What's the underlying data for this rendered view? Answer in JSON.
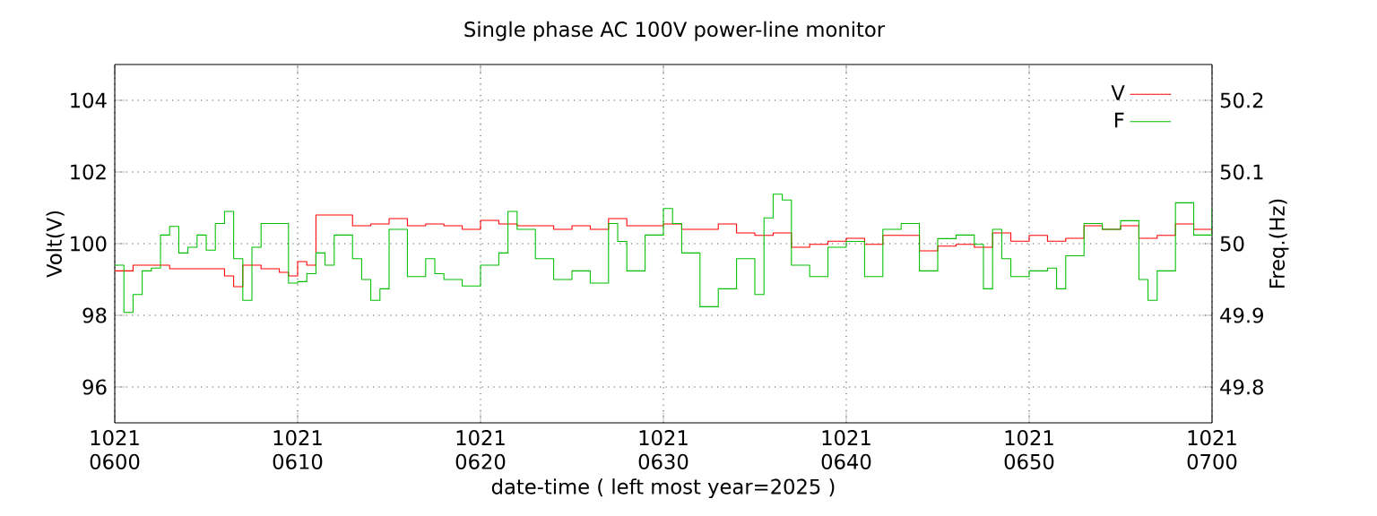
{
  "chart_data": {
    "type": "step",
    "title": "Single phase AC 100V power-line monitor",
    "xlabel": "date-time ( left most year=2025 )",
    "ylabel": "Volt(V)",
    "y2label": "Freq.(Hz)",
    "xlim": [
      "2025-10-21T06:00",
      "2025-10-21T07:00"
    ],
    "xticks": [
      {
        "value": "2025-10-21T06:00",
        "label": "1021 0600"
      },
      {
        "value": "2025-10-21T06:10",
        "label": "1021 0610"
      },
      {
        "value": "2025-10-21T06:20",
        "label": "1021 0620"
      },
      {
        "value": "2025-10-21T06:30",
        "label": "1021 0630"
      },
      {
        "value": "2025-10-21T06:40",
        "label": "1021 0640"
      },
      {
        "value": "2025-10-21T06:50",
        "label": "1021 0650"
      },
      {
        "value": "2025-10-21T07:00",
        "label": "1021 0700"
      }
    ],
    "ylim": [
      95,
      105
    ],
    "yticks": [
      96,
      98,
      100,
      102,
      104
    ],
    "y2lim": [
      49.75,
      50.25
    ],
    "y2ticks": [
      49.8,
      49.9,
      {
        "value": 50,
        "label": "50"
      },
      50.1,
      50.2
    ],
    "grid": true,
    "legend": "top right",
    "series": [
      {
        "name": "V",
        "color": "#ff0000",
        "x": [
          "2025-10-21T06:00",
          "2025-10-21T06:01",
          "2025-10-21T06:02",
          "2025-10-21T06:03",
          "2025-10-21T06:04",
          "2025-10-21T06:05",
          "2025-10-21T06:06",
          "2025-10-21T06:06:30",
          "2025-10-21T06:07",
          "2025-10-21T06:08",
          "2025-10-21T06:09",
          "2025-10-21T06:09:30",
          "2025-10-21T06:10",
          "2025-10-21T06:10:30",
          "2025-10-21T06:11",
          "2025-10-21T06:12",
          "2025-10-21T06:13",
          "2025-10-21T06:14",
          "2025-10-21T06:15",
          "2025-10-21T06:16",
          "2025-10-21T06:17",
          "2025-10-21T06:18",
          "2025-10-21T06:19",
          "2025-10-21T06:20",
          "2025-10-21T06:21",
          "2025-10-21T06:22",
          "2025-10-21T06:23",
          "2025-10-21T06:24",
          "2025-10-21T06:25",
          "2025-10-21T06:26",
          "2025-10-21T06:27",
          "2025-10-21T06:28",
          "2025-10-21T06:29",
          "2025-10-21T06:30",
          "2025-10-21T06:31",
          "2025-10-21T06:32",
          "2025-10-21T06:33",
          "2025-10-21T06:34",
          "2025-10-21T06:35",
          "2025-10-21T06:36",
          "2025-10-21T06:37",
          "2025-10-21T06:38",
          "2025-10-21T06:39",
          "2025-10-21T06:40",
          "2025-10-21T06:41",
          "2025-10-21T06:42",
          "2025-10-21T06:43",
          "2025-10-21T06:44",
          "2025-10-21T06:45",
          "2025-10-21T06:46",
          "2025-10-21T06:47",
          "2025-10-21T06:48",
          "2025-10-21T06:49",
          "2025-10-21T06:50",
          "2025-10-21T06:51",
          "2025-10-21T06:52",
          "2025-10-21T06:53",
          "2025-10-21T06:54",
          "2025-10-21T06:55",
          "2025-10-21T06:56",
          "2025-10-21T06:57",
          "2025-10-21T06:58",
          "2025-10-21T06:59",
          "2025-10-21T07:00"
        ],
        "values": [
          99.24,
          99.4,
          99.4,
          99.3,
          99.3,
          99.3,
          99.1,
          98.8,
          99.4,
          99.3,
          99.2,
          99.1,
          99.5,
          99.4,
          100.8,
          100.8,
          100.5,
          100.55,
          100.7,
          100.5,
          100.55,
          100.5,
          100.4,
          100.65,
          100.55,
          100.5,
          100.5,
          100.4,
          100.5,
          100.4,
          100.7,
          100.5,
          100.5,
          100.55,
          100.4,
          100.4,
          100.55,
          100.3,
          100.23,
          100.3,
          99.9,
          99.98,
          100.07,
          100.15,
          99.98,
          100.23,
          100.23,
          99.8,
          99.93,
          99.98,
          99.9,
          100.3,
          100.07,
          100.23,
          100.07,
          100.15,
          100.5,
          100.4,
          100.5,
          100.15,
          100.23,
          100.55,
          100.4,
          100.3
        ]
      },
      {
        "name": "F",
        "color": "#00c000",
        "axis": "y2",
        "x": [
          "2025-10-21T06:00",
          "2025-10-21T06:00:30",
          "2025-10-21T06:01",
          "2025-10-21T06:01:30",
          "2025-10-21T06:02",
          "2025-10-21T06:02:30",
          "2025-10-21T06:03",
          "2025-10-21T06:03:30",
          "2025-10-21T06:04",
          "2025-10-21T06:04:30",
          "2025-10-21T06:05",
          "2025-10-21T06:05:30",
          "2025-10-21T06:06",
          "2025-10-21T06:06:30",
          "2025-10-21T06:07",
          "2025-10-21T06:07:30",
          "2025-10-21T06:08",
          "2025-10-21T06:09",
          "2025-10-21T06:09:30",
          "2025-10-21T06:10",
          "2025-10-21T06:10:30",
          "2025-10-21T06:11",
          "2025-10-21T06:11:30",
          "2025-10-21T06:12",
          "2025-10-21T06:13",
          "2025-10-21T06:13:30",
          "2025-10-21T06:14",
          "2025-10-21T06:14:30",
          "2025-10-21T06:15",
          "2025-10-21T06:15:30",
          "2025-10-21T06:16",
          "2025-10-21T06:17",
          "2025-10-21T06:17:30",
          "2025-10-21T06:18",
          "2025-10-21T06:19",
          "2025-10-21T06:20",
          "2025-10-21T06:21",
          "2025-10-21T06:21:30",
          "2025-10-21T06:22",
          "2025-10-21T06:23",
          "2025-10-21T06:24",
          "2025-10-21T06:25",
          "2025-10-21T06:26",
          "2025-10-21T06:27",
          "2025-10-21T06:27:30",
          "2025-10-21T06:28",
          "2025-10-21T06:29",
          "2025-10-21T06:30",
          "2025-10-21T06:30:30",
          "2025-10-21T06:31",
          "2025-10-21T06:32",
          "2025-10-21T06:33",
          "2025-10-21T06:34",
          "2025-10-21T06:35",
          "2025-10-21T06:35:30",
          "2025-10-21T06:36",
          "2025-10-21T06:36:30",
          "2025-10-21T06:37",
          "2025-10-21T06:38",
          "2025-10-21T06:39",
          "2025-10-21T06:40",
          "2025-10-21T06:41",
          "2025-10-21T06:42",
          "2025-10-21T06:43",
          "2025-10-21T06:44",
          "2025-10-21T06:45",
          "2025-10-21T06:46",
          "2025-10-21T06:47",
          "2025-10-21T06:47:30",
          "2025-10-21T06:48",
          "2025-10-21T06:48:30",
          "2025-10-21T06:49",
          "2025-10-21T06:50",
          "2025-10-21T06:51",
          "2025-10-21T06:51:30",
          "2025-10-21T06:52",
          "2025-10-21T06:53",
          "2025-10-21T06:54",
          "2025-10-21T06:55",
          "2025-10-21T06:56",
          "2025-10-21T06:56:30",
          "2025-10-21T06:57",
          "2025-10-21T06:58",
          "2025-10-21T06:59",
          "2025-10-21T07:00"
        ],
        "values": [
          49.97,
          49.904,
          49.929,
          49.962,
          49.966,
          50.012,
          50.024,
          49.987,
          49.995,
          50.012,
          49.991,
          50.028,
          50.045,
          49.979,
          49.921,
          49.995,
          50.028,
          50.028,
          49.945,
          49.947,
          49.958,
          49.987,
          49.97,
          50.012,
          49.979,
          49.95,
          49.921,
          49.937,
          50.02,
          50.02,
          49.954,
          49.979,
          49.958,
          49.95,
          49.941,
          49.97,
          49.987,
          50.045,
          50.02,
          49.979,
          49.95,
          49.962,
          49.945,
          50.028,
          50.003,
          49.962,
          50.012,
          50.049,
          50.028,
          49.987,
          49.912,
          49.937,
          49.979,
          49.929,
          50.036,
          50.069,
          50.061,
          49.97,
          49.954,
          49.995,
          50.003,
          49.954,
          50.02,
          50.028,
          49.962,
          50.007,
          50.012,
          49.999,
          49.937,
          50.02,
          49.979,
          49.954,
          49.962,
          49.966,
          49.937,
          49.983,
          50.028,
          50.02,
          50.032,
          49.95,
          49.921,
          49.962,
          50.057,
          50.012,
          50.049
        ]
      }
    ]
  }
}
